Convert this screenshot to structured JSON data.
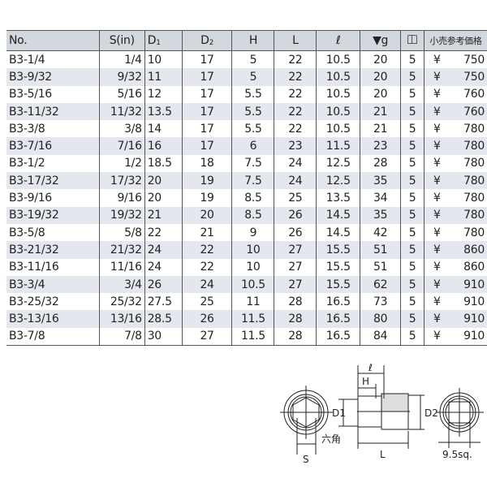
{
  "headers": {
    "no": "No.",
    "s": "S(in)",
    "d1": "D",
    "d1_sub": "1",
    "d2": "D",
    "d2_sub": "2",
    "h": "H",
    "l": "L",
    "ell": "ℓ",
    "g": "▼g",
    "box_icon": "book-icon",
    "price": "小売参考価格"
  },
  "currency": "¥",
  "rows": [
    [
      "B3-1/4",
      "1/4",
      "10",
      "17",
      "5",
      "22",
      "10.5",
      "20",
      "5",
      "750"
    ],
    [
      "B3-9/32",
      "9/32",
      "11",
      "17",
      "5",
      "22",
      "10.5",
      "20",
      "5",
      "750"
    ],
    [
      "B3-5/16",
      "5/16",
      "12",
      "17",
      "5.5",
      "22",
      "10.5",
      "20",
      "5",
      "760"
    ],
    [
      "B3-11/32",
      "11/32",
      "13.5",
      "17",
      "5.5",
      "22",
      "10.5",
      "21",
      "5",
      "760"
    ],
    [
      "B3-3/8",
      "3/8",
      "14",
      "17",
      "5.5",
      "22",
      "10.5",
      "21",
      "5",
      "780"
    ],
    [
      "B3-7/16",
      "7/16",
      "16",
      "17",
      "6",
      "23",
      "11.5",
      "23",
      "5",
      "780"
    ],
    [
      "B3-1/2",
      "1/2",
      "18.5",
      "18",
      "7.5",
      "24",
      "12.5",
      "28",
      "5",
      "780"
    ],
    [
      "B3-17/32",
      "17/32",
      "20",
      "19",
      "7.5",
      "24",
      "12.5",
      "35",
      "5",
      "780"
    ],
    [
      "B3-9/16",
      "9/16",
      "20",
      "19",
      "8.5",
      "25",
      "13.5",
      "34",
      "5",
      "780"
    ],
    [
      "B3-19/32",
      "19/32",
      "21",
      "20",
      "8.5",
      "26",
      "14.5",
      "35",
      "5",
      "780"
    ],
    [
      "B3-5/8",
      "5/8",
      "22",
      "21",
      "9",
      "26",
      "14.5",
      "42",
      "5",
      "780"
    ],
    [
      "B3-21/32",
      "21/32",
      "24",
      "22",
      "10",
      "27",
      "15.5",
      "51",
      "5",
      "860"
    ],
    [
      "B3-11/16",
      "11/16",
      "24",
      "22",
      "10",
      "27",
      "15.5",
      "51",
      "5",
      "860"
    ],
    [
      "B3-3/4",
      "3/4",
      "26",
      "24",
      "10.5",
      "27",
      "15.5",
      "62",
      "5",
      "910"
    ],
    [
      "B3-25/32",
      "25/32",
      "27.5",
      "25",
      "11",
      "28",
      "16.5",
      "73",
      "5",
      "910"
    ],
    [
      "B3-13/16",
      "13/16",
      "28.5",
      "26",
      "11.5",
      "28",
      "16.5",
      "80",
      "5",
      "910"
    ],
    [
      "B3-7/8",
      "7/8",
      "30",
      "27",
      "11.5",
      "28",
      "16.5",
      "84",
      "5",
      "910"
    ]
  ],
  "diagram": {
    "s": "S",
    "hex": "六角",
    "d1": "D1",
    "d2": "D2",
    "h": "H",
    "ell": "ℓ",
    "l": "L",
    "sq": "9.5sq."
  }
}
